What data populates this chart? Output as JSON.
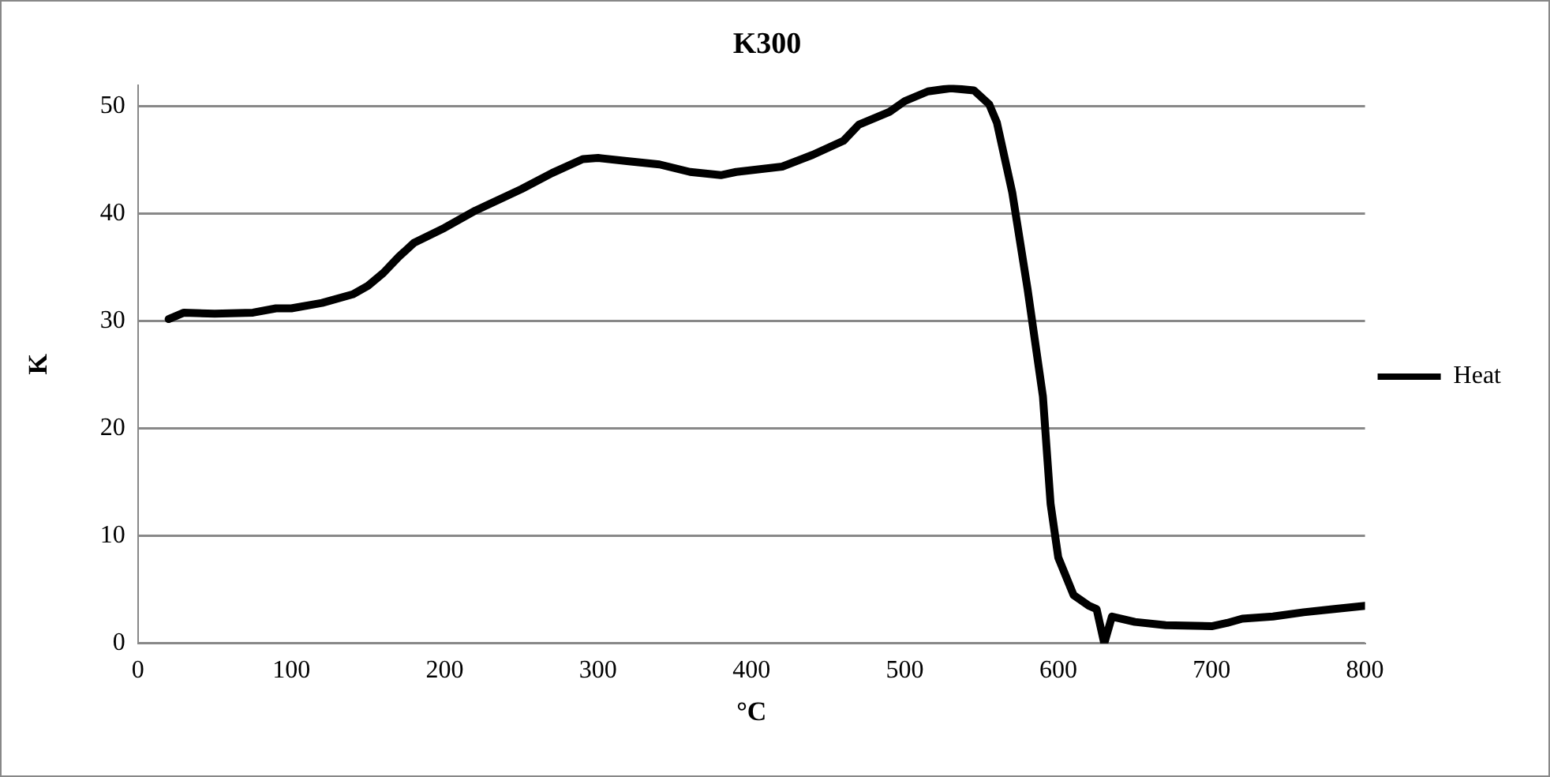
{
  "chart_data": {
    "type": "line",
    "title": "K300",
    "xlabel": "°C",
    "ylabel": "K",
    "x": [
      20,
      30,
      50,
      75,
      90,
      100,
      120,
      140,
      150,
      160,
      170,
      180,
      200,
      220,
      250,
      270,
      290,
      300,
      320,
      340,
      360,
      380,
      390,
      420,
      440,
      460,
      470,
      490,
      500,
      515,
      530,
      545,
      555,
      560,
      570,
      580,
      590,
      595,
      600,
      610,
      620,
      625,
      630,
      635,
      650,
      670,
      700,
      710,
      720,
      740,
      760,
      780,
      800
    ],
    "series": [
      {
        "name": "Heat",
        "color": "#000000",
        "values": [
          30.2,
          30.8,
          30.7,
          30.8,
          31.2,
          31.2,
          31.7,
          32.5,
          33.3,
          34.5,
          36,
          37.3,
          38.7,
          40.3,
          42.3,
          43.8,
          45.1,
          45.2,
          44.9,
          44.6,
          43.9,
          43.6,
          43.9,
          44.4,
          45.5,
          46.8,
          48.3,
          49.5,
          50.5,
          51.4,
          51.7,
          51.5,
          50.2,
          48.5,
          42,
          33,
          23,
          13,
          8,
          4.5,
          3.5,
          3.2,
          0,
          2.5,
          2,
          1.7,
          1.6,
          1.9,
          2.3,
          2.5,
          2.9,
          3.2,
          3.5
        ]
      }
    ],
    "xlim": [
      0,
      800
    ],
    "xticks": [
      0,
      100,
      200,
      300,
      400,
      500,
      600,
      700,
      800
    ],
    "ylim": [
      0,
      52
    ],
    "yticks": [
      0,
      10,
      20,
      30,
      40,
      50
    ],
    "grid": "y",
    "legend": "right",
    "marker": "none",
    "line_style": "solid"
  }
}
